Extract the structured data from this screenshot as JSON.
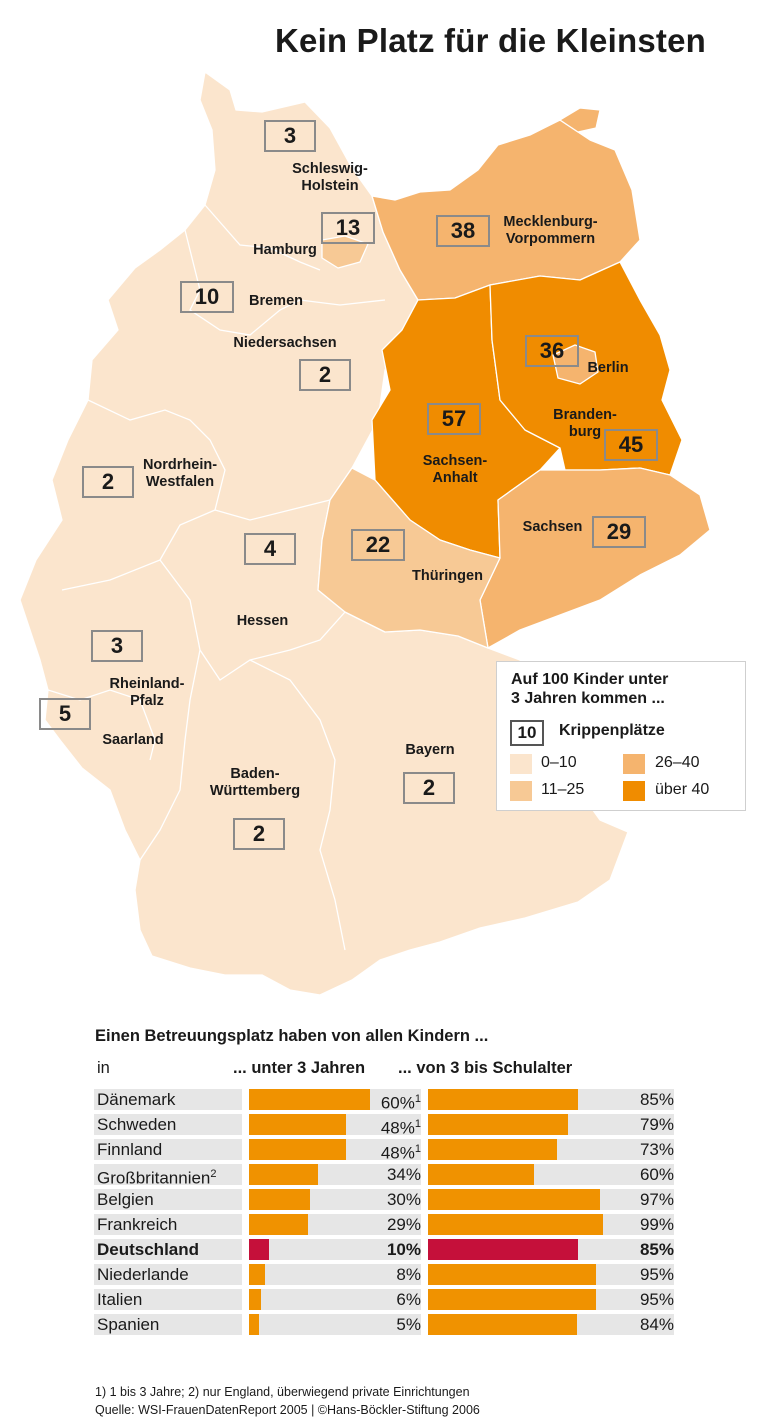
{
  "title": "Kein Platz für die Kleinsten",
  "colors": {
    "c0_10": "#fbe5cd",
    "c11_25": "#f7c995",
    "c26_40": "#f5b46e",
    "c_over40": "#f08c00",
    "bar": "#f09200",
    "bar_highlight": "#c5103a",
    "row_bg": "#e6e6e6"
  },
  "states": [
    {
      "name": "Schleswig-\nHolstein",
      "value": "3"
    },
    {
      "name": "Hamburg",
      "value": "13"
    },
    {
      "name": "Mecklenburg-\nVorpommern",
      "value": "38"
    },
    {
      "name": "Bremen",
      "value": "10"
    },
    {
      "name": "Niedersachsen",
      "value": "2"
    },
    {
      "name": "Berlin",
      "value": "36"
    },
    {
      "name": "Sachsen-\nAnhalt",
      "value": "57"
    },
    {
      "name": "Branden-\nburg",
      "value": "45"
    },
    {
      "name": "Nordrhein-\nWestfalen",
      "value": "2"
    },
    {
      "name": "Sachsen",
      "value": "29"
    },
    {
      "name": "Thüringen",
      "value": "22"
    },
    {
      "name": "Hessen",
      "value": "4"
    },
    {
      "name": "Rheinland-\nPfalz",
      "value": "3"
    },
    {
      "name": "Saarland",
      "value": "5"
    },
    {
      "name": "Bayern",
      "value": "2"
    },
    {
      "name": "Baden-\nWürttemberg",
      "value": "2"
    }
  ],
  "legend": {
    "title": "Auf 100 Kinder unter\n3 Jahren kommen ...",
    "box_value": "10",
    "box_label": "Krippenplätze",
    "ranges": [
      "0–10",
      "11–25",
      "26–40",
      "über 40"
    ]
  },
  "table": {
    "title": "Einen Betreuungsplatz haben von allen Kindern ...",
    "col_in": "in",
    "col_under3": "... unter 3 Jahren",
    "col_3toschool": "... von 3 bis Schulalter"
  },
  "chart_data": {
    "type": "bar",
    "categories": [
      "Dänemark",
      "Schweden",
      "Finnland",
      "Großbritannien",
      "Belgien",
      "Frankreich",
      "Deutschland",
      "Niederlande",
      "Italien",
      "Spanien"
    ],
    "category_superscripts": [
      "",
      "",
      "",
      "2",
      "",
      "",
      "",
      "",
      "",
      ""
    ],
    "series": [
      {
        "name": "... unter 3 Jahren",
        "values": [
          60,
          48,
          48,
          34,
          30,
          29,
          10,
          8,
          6,
          5
        ],
        "value_superscripts": [
          "1",
          "1",
          "1",
          "",
          "",
          "",
          "",
          "",
          "",
          ""
        ]
      },
      {
        "name": "... von 3 bis Schulalter",
        "values": [
          85,
          79,
          73,
          60,
          97,
          99,
          85,
          95,
          95,
          84
        ],
        "value_superscripts": [
          "",
          "",
          "",
          "",
          "",
          "",
          "",
          "",
          "",
          ""
        ]
      }
    ],
    "unit": "%",
    "highlight": "Deutschland",
    "ylim": [
      0,
      100
    ]
  },
  "footnote": "1) 1 bis 3 Jahre; 2) nur England, überwiegend private Einrichtungen",
  "source": "Quelle: WSI-FrauenDatenReport 2005 | ©Hans-Böckler-Stiftung 2006"
}
